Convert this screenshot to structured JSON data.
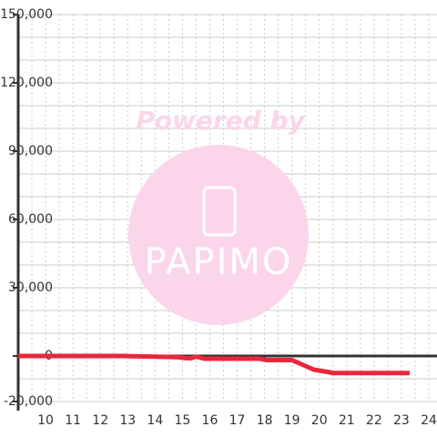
{
  "chart_data": {
    "type": "line",
    "watermark": {
      "text": "Powered by",
      "logo": "PAPIMO"
    },
    "x": [
      9,
      12.8,
      14.8,
      15.1,
      15.3,
      15.5,
      15.8,
      17.8,
      18.1,
      19,
      19.8,
      20.3,
      20.5,
      23.3
    ],
    "series": [
      {
        "color": "#e8283a",
        "values": [
          0,
          0,
          -500,
          -900,
          -1000,
          -300,
          -1200,
          -1200,
          -1800,
          -1800,
          -6000,
          -7000,
          -7500,
          -7500
        ]
      }
    ],
    "xlim": [
      9,
      24.3
    ],
    "xticks": [
      10,
      11,
      12,
      13,
      14,
      15,
      16,
      17,
      18,
      19,
      20,
      21,
      22,
      23,
      24
    ],
    "x_minor_ticks": [
      9.5,
      10.5,
      11.5,
      12.5,
      13.5,
      14.5,
      15.5,
      16.5,
      17.5,
      18.5,
      19.5,
      20.5,
      21.5,
      22.5,
      23.5
    ],
    "ylim": [
      -20000,
      150000
    ],
    "yticks": [
      {
        "value": -20000,
        "label": "-20,000"
      },
      0,
      {
        "value": 30000,
        "label": "30,000"
      },
      {
        "value": 60000,
        "label": "60,000"
      },
      {
        "value": 90000,
        "label": "90,000"
      },
      {
        "value": 120000,
        "label": "120,000"
      },
      {
        "value": 150000,
        "label": "150,000"
      }
    ],
    "y_minor_ticks": [
      -10000,
      10000,
      20000,
      40000,
      50000,
      70000,
      80000,
      100000,
      110000,
      130000,
      140000
    ],
    "grid": true
  }
}
